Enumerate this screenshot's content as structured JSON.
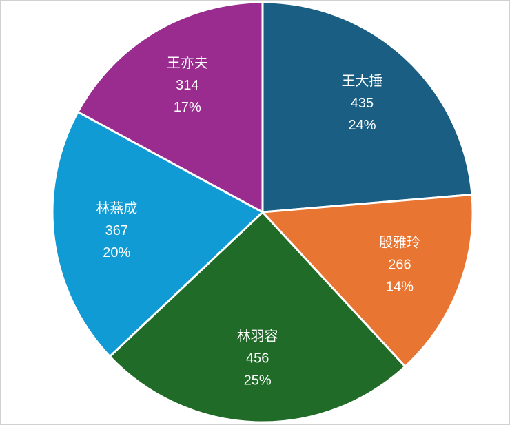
{
  "chart_data": {
    "type": "pie",
    "categories": [
      "王大捶",
      "殷雅玲",
      "林羽容",
      "林燕成",
      "王亦夫"
    ],
    "values": [
      435,
      266,
      456,
      367,
      314
    ],
    "percent_labels": [
      "24%",
      "14%",
      "25%",
      "20%",
      "17%"
    ],
    "colors": [
      "#1a5f83",
      "#e97532",
      "#1f6b27",
      "#119bd4",
      "#9a2b8f"
    ]
  }
}
